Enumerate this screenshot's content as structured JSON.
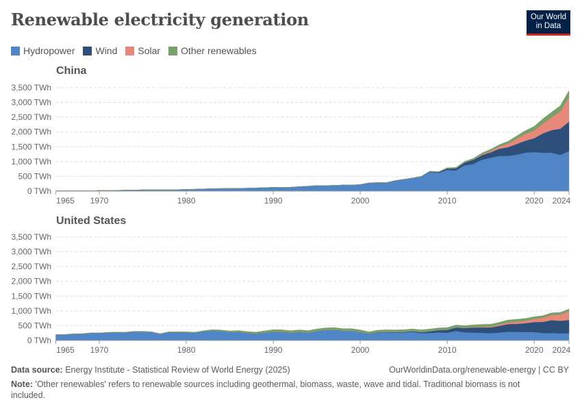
{
  "header": {
    "title": "Renewable electricity generation",
    "logo_line1": "Our World",
    "logo_line2": "in Data"
  },
  "legend": [
    {
      "label": "Hydropower",
      "color": "#5085c7"
    },
    {
      "label": "Wind",
      "color": "#2f4f7b"
    },
    {
      "label": "Solar",
      "color": "#e8887a"
    },
    {
      "label": "Other renewables",
      "color": "#78a06a"
    }
  ],
  "footer": {
    "source_label": "Data source:",
    "source": "Energy Institute - Statistical Review of World Energy (2025)",
    "url": "OurWorldinData.org/renewable-energy | CC BY",
    "note_label": "Note:",
    "note": "'Other renewables' refers to renewable sources including geothermal, biomass, waste, wave and tidal. Traditional biomass is not included."
  },
  "chart_data": [
    {
      "type": "area",
      "stacked": true,
      "title": "China",
      "ylim": [
        0,
        3500
      ],
      "y_ticks": [
        0,
        500,
        1000,
        1500,
        2000,
        2500,
        3000,
        3500
      ],
      "y_tick_labels": [
        "0 TWh",
        "500 TWh",
        "1,000 TWh",
        "1,500 TWh",
        "2,000 TWh",
        "2,500 TWh",
        "3,000 TWh",
        "3,500 TWh"
      ],
      "x_ticks": [
        1965,
        1970,
        1980,
        1990,
        2000,
        2010,
        2020,
        2024
      ],
      "x_start": 1965,
      "x_end": 2024,
      "grid": "horizontal dashed",
      "series": [
        {
          "name": "Hydropower",
          "values": [
            10,
            11,
            12,
            13,
            14,
            20,
            24,
            28,
            32,
            37,
            44,
            45,
            47,
            44,
            50,
            58,
            65,
            74,
            86,
            87,
            92,
            94,
            100,
            109,
            118,
            127,
            124,
            131,
            152,
            167,
            190,
            187,
            195,
            206,
            204,
            222,
            277,
            288,
            283,
            353,
            397,
            436,
            485,
            652,
            616,
            722,
            699,
            872,
            920,
            1064,
            1130,
            1193,
            1194,
            1232,
            1302,
            1322,
            1300,
            1303,
            1226,
            1354
          ]
        },
        {
          "name": "Wind",
          "values": [
            0,
            0,
            0,
            0,
            0,
            0,
            0,
            0,
            0,
            0,
            0,
            0,
            0,
            0,
            0,
            0,
            0,
            0,
            0,
            0,
            0,
            0,
            0,
            0,
            0,
            0,
            0,
            0,
            0,
            0,
            0,
            0,
            0,
            0,
            0,
            1,
            1,
            1,
            1,
            1,
            2,
            4,
            6,
            13,
            28,
            45,
            70,
            96,
            141,
            156,
            186,
            241,
            295,
            366,
            406,
            467,
            656,
            762,
            886,
            997
          ]
        },
        {
          "name": "Solar",
          "values": [
            0,
            0,
            0,
            0,
            0,
            0,
            0,
            0,
            0,
            0,
            0,
            0,
            0,
            0,
            0,
            0,
            0,
            0,
            0,
            0,
            0,
            0,
            0,
            0,
            0,
            0,
            0,
            0,
            0,
            0,
            0,
            0,
            0,
            0,
            0,
            0,
            0,
            0,
            0,
            0,
            0,
            0,
            0,
            0,
            0,
            1,
            3,
            4,
            8,
            24,
            45,
            75,
            118,
            177,
            225,
            261,
            327,
            428,
            584,
            834
          ]
        },
        {
          "name": "Other renewables",
          "values": [
            0,
            0,
            0,
            0,
            0,
            0,
            0,
            0,
            0,
            0,
            0,
            0,
            0,
            0,
            0,
            0,
            0,
            0,
            0,
            0,
            0,
            0,
            0,
            0,
            0,
            1,
            1,
            1,
            1,
            1,
            1,
            2,
            2,
            2,
            2,
            2,
            3,
            3,
            3,
            4,
            5,
            7,
            9,
            12,
            14,
            25,
            30,
            35,
            40,
            48,
            55,
            65,
            80,
            95,
            115,
            140,
            165,
            180,
            195,
            210
          ]
        }
      ]
    },
    {
      "type": "area",
      "stacked": true,
      "title": "United States",
      "ylim": [
        0,
        3500
      ],
      "y_ticks": [
        0,
        500,
        1000,
        1500,
        2000,
        2500,
        3000,
        3500
      ],
      "y_tick_labels": [
        "0 TWh",
        "500 TWh",
        "1,000 TWh",
        "1,500 TWh",
        "2,000 TWh",
        "2,500 TWh",
        "3,000 TWh",
        "3,500 TWh"
      ],
      "x_ticks": [
        1965,
        1970,
        1980,
        1990,
        2000,
        2010,
        2020,
        2024
      ],
      "x_start": 1965,
      "x_end": 2024,
      "grid": "horizontal dashed",
      "series": [
        {
          "name": "Hydropower",
          "values": [
            196,
            198,
            223,
            224,
            253,
            250,
            269,
            275,
            272,
            301,
            300,
            283,
            220,
            280,
            280,
            276,
            263,
            309,
            335,
            321,
            281,
            290,
            250,
            223,
            265,
            290,
            286,
            250,
            280,
            254,
            310,
            347,
            356,
            323,
            319,
            275,
            217,
            264,
            275,
            268,
            270,
            289,
            247,
            254,
            273,
            260,
            319,
            276,
            269,
            259,
            249,
            268,
            300,
            292,
            288,
            285,
            251,
            255,
            240,
            240
          ]
        },
        {
          "name": "Wind",
          "values": [
            0,
            0,
            0,
            0,
            0,
            0,
            0,
            0,
            0,
            0,
            0,
            0,
            0,
            0,
            0,
            0,
            0,
            0,
            0,
            0,
            1,
            1,
            2,
            2,
            2,
            3,
            3,
            3,
            3,
            3,
            3,
            3,
            3,
            3,
            5,
            6,
            7,
            10,
            11,
            14,
            18,
            27,
            34,
            55,
            74,
            95,
            120,
            141,
            168,
            182,
            191,
            227,
            254,
            273,
            295,
            338,
            378,
            434,
            425,
            453
          ]
        },
        {
          "name": "Solar",
          "values": [
            0,
            0,
            0,
            0,
            0,
            0,
            0,
            0,
            0,
            0,
            0,
            0,
            0,
            0,
            0,
            0,
            0,
            0,
            0,
            0,
            0,
            0,
            0,
            0,
            0,
            0,
            1,
            1,
            1,
            1,
            1,
            1,
            1,
            1,
            1,
            1,
            1,
            1,
            1,
            1,
            1,
            1,
            1,
            1,
            2,
            3,
            4,
            6,
            11,
            19,
            28,
            40,
            60,
            72,
            85,
            104,
            135,
            170,
            210,
            300
          ]
        },
        {
          "name": "Other renewables",
          "values": [
            3,
            3,
            4,
            4,
            5,
            6,
            7,
            8,
            9,
            10,
            10,
            11,
            12,
            13,
            14,
            15,
            18,
            22,
            28,
            34,
            40,
            45,
            50,
            55,
            58,
            70,
            72,
            74,
            75,
            76,
            75,
            74,
            76,
            75,
            76,
            75,
            68,
            72,
            74,
            75,
            76,
            75,
            75,
            76,
            76,
            78,
            78,
            78,
            80,
            82,
            81,
            80,
            80,
            80,
            78,
            76,
            75,
            74,
            73,
            72
          ]
        }
      ]
    }
  ]
}
